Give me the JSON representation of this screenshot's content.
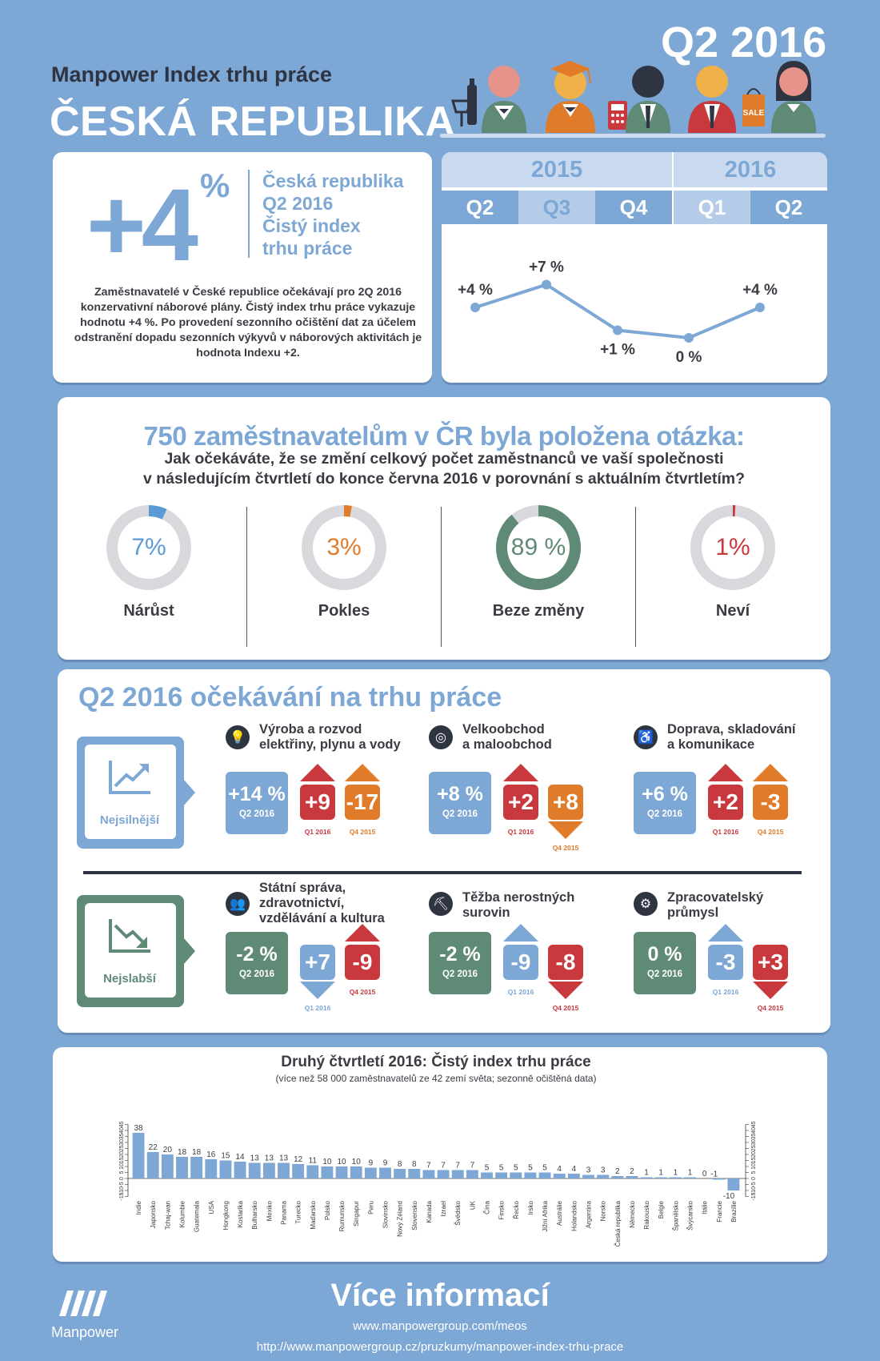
{
  "header": {
    "subtitle": "Manpower Index trhu práce",
    "country": "ČESKÁ REPUBLIKA",
    "quarter": "Q2 2016",
    "shop_sign": "SALE"
  },
  "summary": {
    "value": "+4",
    "unit": "%",
    "labels": [
      "Česká republika",
      "Q2 2016",
      "Čistý index",
      "trhu práce"
    ],
    "description": "Zaměstnavatelé v České republice očekávají pro 2Q 2016 konzervativní náborové plány. Čistý index trhu práce vykazuje hodnotu +4 %. Po provedení sezonního očištění dat za účelem odstranění dopadu sezonních výkyvů v náborových aktivitách je hodnota Indexu +2."
  },
  "timeline": {
    "years": [
      "2015",
      "2016"
    ],
    "quarters": [
      "Q2",
      "Q3",
      "Q4",
      "Q1",
      "Q2"
    ],
    "values": [
      4,
      7,
      1,
      0,
      4
    ],
    "labels": [
      "+4 %",
      "+7 %",
      "+1 %",
      "0 %",
      "+4 %"
    ]
  },
  "survey": {
    "title": "750 zaměstnavatelům v ČR byla položena otázka:",
    "question_line1": "Jak očekáváte, že se změní celkový počet zaměstnanců ve vaší společnosti",
    "question_line2": "v následujícím čtvrtletí do konce června 2016 v porovnání s aktuálním čtvrtletím?",
    "items": [
      {
        "label": "Nárůst",
        "value": "7%",
        "pct": 7,
        "color": "#5b9bd5"
      },
      {
        "label": "Pokles",
        "value": "3%",
        "pct": 3,
        "color": "#e07b2a"
      },
      {
        "label": "Beze změny",
        "value": "89 %",
        "pct": 89,
        "color": "#5f8a76"
      },
      {
        "label": "Neví",
        "value": "1%",
        "pct": 1,
        "color": "#c8383d"
      }
    ]
  },
  "sectors": {
    "title": "Q2 2016 očekávání na trhu práce",
    "strongest_label": "Nejsilnější",
    "weakest_label": "Nejslabší",
    "q1_label": "Q1 2016",
    "q4_label": "Q4 2015",
    "main_sub": "Q2 2016",
    "strongest": [
      {
        "name1": "Výroba a rozvod",
        "name2": "elektřiny, plynu a vody",
        "value": "+14 %",
        "q1": "+9",
        "q4": "-17",
        "q1_dir": "up",
        "q4_dir": "up"
      },
      {
        "name1": "Velkoobchod",
        "name2": "a maloobchod",
        "value": "+8 %",
        "q1": "+2",
        "q4": "+8",
        "q1_dir": "up",
        "q4_dir": "down"
      },
      {
        "name1": "Doprava, skladování",
        "name2": "a komunikace",
        "value": "+6 %",
        "q1": "+2",
        "q4": "-3",
        "q1_dir": "up",
        "q4_dir": "up"
      }
    ],
    "weakest": [
      {
        "name1": "Státní správa,",
        "name2": "zdravotnictví,",
        "name3": "vzdělávání a kultura",
        "value": "-2 %",
        "q1": "+7",
        "q4": "-9",
        "q1_dir": "down",
        "q4_dir": "up"
      },
      {
        "name1": "Těžba nerostných",
        "name2": "surovin",
        "name3": "",
        "value": "-2 %",
        "q1": "-9",
        "q4": "-8",
        "q1_dir": "up",
        "q4_dir": "down"
      },
      {
        "name1": "Zpracovatelský",
        "name2": "průmysl",
        "name3": "",
        "value": "0 %",
        "q1": "-3",
        "q4": "+3",
        "q1_dir": "up",
        "q4_dir": "down"
      }
    ]
  },
  "chart_data": {
    "type": "bar",
    "title": "Druhý čtvrtletí 2016: Čistý index trhu práce",
    "subtitle": "(více než 58 000 zaměstnavatelů ze 42 zemí světa; sezonně očištěná data)",
    "ylim": [
      -15,
      45
    ],
    "yticks": [
      -15,
      -10,
      -5,
      0,
      5,
      10,
      15,
      20,
      25,
      30,
      35,
      40,
      45
    ],
    "categories": [
      "Indie",
      "Japonsko",
      "Tchaj-wan",
      "Kolumbie",
      "Guatemala",
      "USA",
      "Hongkong",
      "Kostarika",
      "Bulharsko",
      "Mexiko",
      "Panama",
      "Turecko",
      "Maďarsko",
      "Polsko",
      "Rumunsko",
      "Singapur",
      "Peru",
      "Slovinsko",
      "Nový Zéland",
      "Slovensko",
      "Kanada",
      "Izrael",
      "Švédsko",
      "UK",
      "Čína",
      "Finsko",
      "Řecko",
      "Irsko",
      "Jižní Afrika",
      "Austrálie",
      "Holandsko",
      "Argentina",
      "Norsko",
      "Česká republika",
      "Německo",
      "Rakousko",
      "Belgie",
      "Španělsko",
      "Švýcarsko",
      "Itálie",
      "Francie",
      "Brazílie"
    ],
    "values": [
      38,
      22,
      20,
      18,
      18,
      16,
      15,
      14,
      13,
      13,
      13,
      12,
      11,
      10,
      10,
      10,
      9,
      9,
      8,
      8,
      7,
      7,
      7,
      7,
      5,
      5,
      5,
      5,
      5,
      4,
      4,
      3,
      3,
      2,
      2,
      1,
      1,
      1,
      1,
      0,
      -1,
      -10
    ]
  },
  "footer": {
    "more_info": "Více informací",
    "url1": "www.manpowergroup.com/meos",
    "url2": "http://www.manpowergroup.cz/pruzkumy/manpower-index-trhu-prace",
    "logo_text": "Manpower"
  },
  "colors": {
    "background": "#7da7d4",
    "accent_blue": "#7da7d4",
    "red": "#c8383d",
    "orange": "#e07b2a",
    "green": "#5f8a76",
    "dark": "#2f3443"
  }
}
